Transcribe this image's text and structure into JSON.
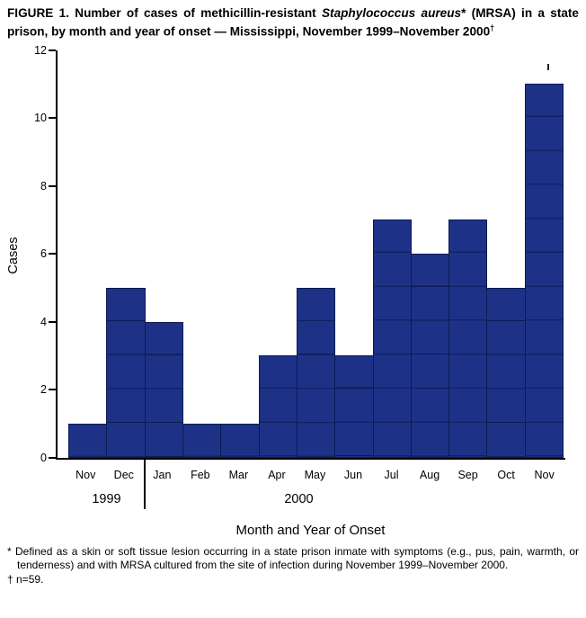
{
  "figure": {
    "title_parts": {
      "before_italic": "FIGURE 1. Number of cases of methicillin-resistant ",
      "italic": "Staphylococcus aureus",
      "after_italic": "* (MRSA) in a state prison, by month and year of onset — Mississippi, November 1999–November 2000",
      "superscript": "†"
    },
    "footnotes": [
      "* Defined as a skin or soft tissue lesion occurring in a state prison inmate with symptoms (e.g., pus, pain, warmth, or tenderness) and with MRSA cultured from the site of infection during November 1999–November 2000.",
      "† n=59."
    ]
  },
  "chart_data": {
    "type": "bar",
    "title": "FIGURE 1. Number of cases of methicillin-resistant Staphylococcus aureus* (MRSA) in a state prison, by month and year of onset — Mississippi, November 1999–November 2000†",
    "categories": [
      "Nov",
      "Dec",
      "Jan",
      "Feb",
      "Mar",
      "Apr",
      "May",
      "Jun",
      "Jul",
      "Aug",
      "Sep",
      "Oct",
      "Nov"
    ],
    "values": [
      1,
      5,
      4,
      1,
      1,
      3,
      5,
      3,
      7,
      6,
      7,
      5,
      11
    ],
    "year_groups": [
      {
        "label": "1999",
        "months": [
          "Nov",
          "Dec"
        ]
      },
      {
        "label": "2000",
        "months": [
          "Jan",
          "Feb",
          "Mar",
          "Apr",
          "May",
          "Jun",
          "Jul",
          "Aug",
          "Sep",
          "Oct",
          "Nov"
        ]
      }
    ],
    "xlabel": "Month and Year of Onset",
    "ylabel": "Cases",
    "ylim": [
      0,
      12
    ],
    "yticks": [
      0,
      2,
      4,
      6,
      8,
      10,
      12
    ],
    "total_n": 59,
    "bar_color": "#1d3287",
    "bar_line_color": "#0d1b52",
    "axis_color": "#000000",
    "grid": false,
    "legend_position": "none"
  }
}
